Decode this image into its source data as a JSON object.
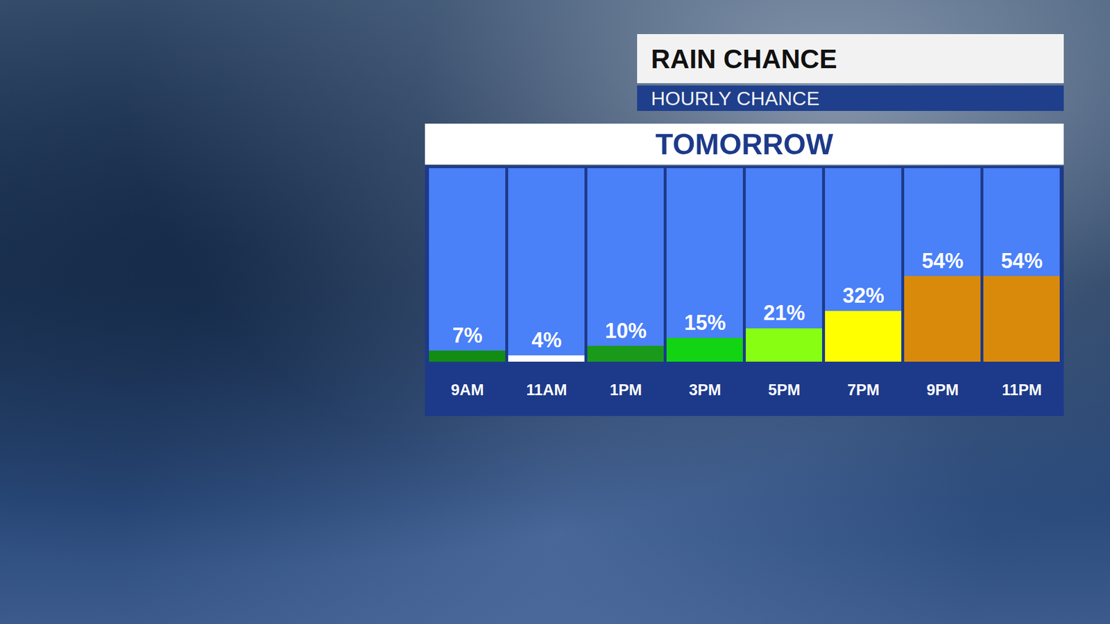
{
  "chart_data": {
    "type": "bar",
    "title": "RAIN CHANCE",
    "subtitle": "HOURLY CHANCE",
    "panel_title": "TOMORROW",
    "categories": [
      "9AM",
      "11AM",
      "1PM",
      "3PM",
      "5PM",
      "7PM",
      "9PM",
      "11PM"
    ],
    "values": [
      7,
      4,
      10,
      15,
      21,
      32,
      54,
      54
    ],
    "value_labels": [
      "7%",
      "4%",
      "10%",
      "15%",
      "21%",
      "32%",
      "54%",
      "54%"
    ],
    "colors": [
      "#128c12",
      "#ffffff",
      "#1a9a1a",
      "#12d412",
      "#88ff12",
      "#ffff00",
      "#d98a0a",
      "#d98a0a"
    ],
    "ylim": [
      0,
      122
    ],
    "grid": false,
    "data_labels": true,
    "tick_labels": "x"
  }
}
